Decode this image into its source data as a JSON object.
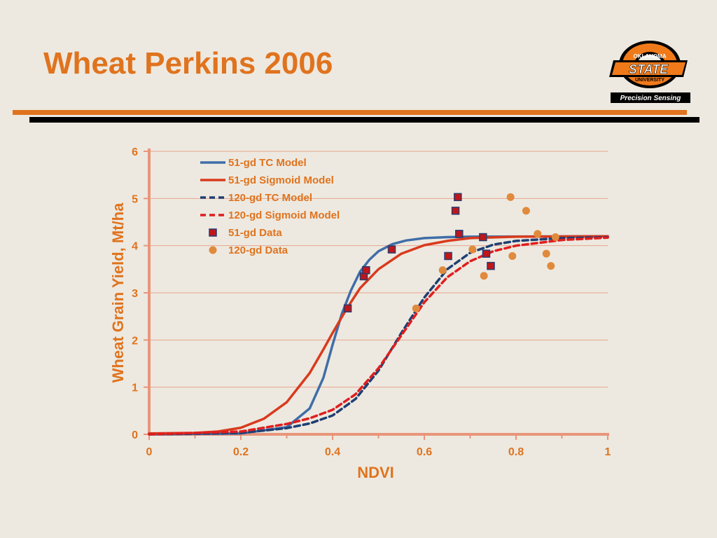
{
  "slide": {
    "title": "Wheat Perkins 2006",
    "logo": {
      "top_text": "OKLAHOMA",
      "main_text": "STATE",
      "sub_text": "UNIVERSITY",
      "tag_text": "Precision Sensing"
    }
  },
  "colors": {
    "title": "#e0731e",
    "blue_series": "#3f6ea8",
    "red_series": "#d93a1e",
    "navy_series": "#1f3f73",
    "square_marker": "#c0161a",
    "dot_marker": "#e08a3c",
    "axis": "#e8957a",
    "grid": "#e8a58e"
  },
  "chart_data": {
    "type": "scatter",
    "xlabel": "NDVI",
    "ylabel": "Wheat Grain Yield, Mt/ha",
    "xlim": [
      0,
      1
    ],
    "ylim": [
      0,
      6
    ],
    "x_ticks": [
      "0",
      "0.2",
      "0.4",
      "0.6",
      "0.8",
      "1"
    ],
    "y_ticks": [
      "0",
      "1",
      "2",
      "3",
      "4",
      "5",
      "6"
    ],
    "grid": "horizontal",
    "legend_position": "top-left",
    "series": [
      {
        "name": "51-gd TC Model",
        "kind": "line",
        "dash": "solid",
        "color": "#3f6ea8",
        "points": [
          [
            0,
            0
          ],
          [
            0.2,
            0.02
          ],
          [
            0.3,
            0.15
          ],
          [
            0.35,
            0.55
          ],
          [
            0.38,
            1.2
          ],
          [
            0.4,
            1.9
          ],
          [
            0.42,
            2.55
          ],
          [
            0.44,
            3.05
          ],
          [
            0.46,
            3.45
          ],
          [
            0.48,
            3.7
          ],
          [
            0.5,
            3.88
          ],
          [
            0.53,
            4.03
          ],
          [
            0.56,
            4.11
          ],
          [
            0.6,
            4.16
          ],
          [
            0.65,
            4.18
          ],
          [
            0.7,
            4.19
          ],
          [
            1.0,
            4.2
          ]
        ]
      },
      {
        "name": "51-gd Sigmoid Model",
        "kind": "line",
        "dash": "solid",
        "color": "#d93a1e",
        "points": [
          [
            0,
            0.02
          ],
          [
            0.1,
            0.03
          ],
          [
            0.15,
            0.06
          ],
          [
            0.2,
            0.14
          ],
          [
            0.25,
            0.33
          ],
          [
            0.3,
            0.68
          ],
          [
            0.35,
            1.3
          ],
          [
            0.38,
            1.8
          ],
          [
            0.4,
            2.15
          ],
          [
            0.43,
            2.65
          ],
          [
            0.46,
            3.1
          ],
          [
            0.5,
            3.5
          ],
          [
            0.55,
            3.83
          ],
          [
            0.6,
            4.01
          ],
          [
            0.65,
            4.1
          ],
          [
            0.7,
            4.16
          ],
          [
            0.8,
            4.19
          ],
          [
            1.0,
            4.2
          ]
        ]
      },
      {
        "name": "120-gd TC Model",
        "kind": "line",
        "dash": "dashed",
        "color": "#1f3f73",
        "points": [
          [
            0,
            0
          ],
          [
            0.2,
            0.03
          ],
          [
            0.3,
            0.13
          ],
          [
            0.35,
            0.23
          ],
          [
            0.4,
            0.4
          ],
          [
            0.45,
            0.75
          ],
          [
            0.5,
            1.35
          ],
          [
            0.55,
            2.15
          ],
          [
            0.6,
            2.9
          ],
          [
            0.65,
            3.5
          ],
          [
            0.7,
            3.85
          ],
          [
            0.75,
            4.02
          ],
          [
            0.8,
            4.1
          ],
          [
            0.9,
            4.16
          ],
          [
            1.0,
            4.18
          ]
        ]
      },
      {
        "name": "120-gd Sigmoid Model",
        "kind": "line",
        "dash": "dashed",
        "color": "#e01e1e",
        "points": [
          [
            0,
            0
          ],
          [
            0.2,
            0.06
          ],
          [
            0.3,
            0.22
          ],
          [
            0.35,
            0.34
          ],
          [
            0.4,
            0.52
          ],
          [
            0.45,
            0.85
          ],
          [
            0.5,
            1.4
          ],
          [
            0.55,
            2.1
          ],
          [
            0.6,
            2.8
          ],
          [
            0.65,
            3.33
          ],
          [
            0.7,
            3.67
          ],
          [
            0.75,
            3.88
          ],
          [
            0.8,
            4.0
          ],
          [
            0.9,
            4.12
          ],
          [
            1.0,
            4.17
          ]
        ]
      },
      {
        "name": "51-gd Data",
        "kind": "marker",
        "marker": "square",
        "color": "#c0161a",
        "points": [
          [
            0.433,
            2.67
          ],
          [
            0.468,
            3.35
          ],
          [
            0.473,
            3.48
          ],
          [
            0.529,
            3.92
          ],
          [
            0.652,
            3.78
          ],
          [
            0.668,
            4.74
          ],
          [
            0.673,
            5.03
          ],
          [
            0.676,
            4.25
          ],
          [
            0.728,
            4.18
          ],
          [
            0.735,
            3.83
          ],
          [
            0.745,
            3.57
          ]
        ]
      },
      {
        "name": "120-gd Data",
        "kind": "marker",
        "marker": "circle",
        "color": "#e08a3c",
        "points": [
          [
            0.582,
            2.67
          ],
          [
            0.64,
            3.48
          ],
          [
            0.705,
            3.92
          ],
          [
            0.73,
            3.36
          ],
          [
            0.788,
            5.03
          ],
          [
            0.792,
            3.78
          ],
          [
            0.822,
            4.74
          ],
          [
            0.847,
            4.25
          ],
          [
            0.866,
            3.83
          ],
          [
            0.876,
            3.57
          ],
          [
            0.886,
            4.18
          ]
        ]
      }
    ]
  }
}
